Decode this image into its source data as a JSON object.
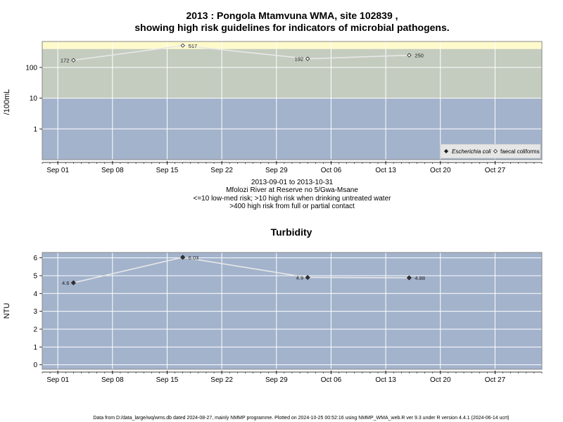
{
  "footer": "Data from D:/data_large/wq/wms.db dated 2024-08-27, mainly NMMP programme. Plotted on 2024-10-25 00:52:16 using NMMP_WMA_web.R ver 9.3 under R version 4.4.1 (2024-06-14 ucrt)",
  "x_ticks": [
    "Sep 01",
    "Sep 08",
    "Sep 15",
    "Sep 22",
    "Sep 29",
    "Oct 06",
    "Oct 13",
    "Oct 20",
    "Oct 27"
  ],
  "x_tick_dates": [
    "2013-09-01",
    "2013-09-08",
    "2013-09-15",
    "2013-09-22",
    "2013-09-29",
    "2013-10-06",
    "2013-10-13",
    "2013-10-20",
    "2013-10-27"
  ],
  "chart_data": [
    {
      "type": "line",
      "title": "2013 : Pongola Mtamvuna WMA, site 102839 ,",
      "subtitle": "showing high risk guidelines for indicators of microbial pathogens.",
      "notes": [
        "2013-09-01 to 2013-10-31",
        "Mfolozi River at Reserve no 5/Gwa-Msane",
        "<=10 low-med risk; >10 high risk when drinking untreated water",
        ">400 high risk from full or partial contact"
      ],
      "xlabel": "",
      "ylabel": "/100mL",
      "y_scale": "log",
      "ylim": [
        0.1,
        700
      ],
      "y_ticks": [
        "1",
        "10",
        "100"
      ],
      "xlim": [
        "2013-08-30",
        "2013-11-02"
      ],
      "grid": true,
      "legend_position": "bottom-right",
      "legend": [
        {
          "label": "Escherichia coli",
          "marker": "filled-diamond"
        },
        {
          "label": "faecal coliforms",
          "marker": "open-diamond"
        }
      ],
      "risk_bands": [
        {
          "from": 0.1,
          "to": 10,
          "color": "#a3b3cc"
        },
        {
          "from": 10,
          "to": 400,
          "color": "#c4ccbf"
        },
        {
          "from": 400,
          "to": 700,
          "color": "#fffacb"
        }
      ],
      "series": [
        {
          "name": "faecal coliforms",
          "marker": "open-diamond",
          "x": [
            "2013-09-03",
            "2013-09-17",
            "2013-10-03",
            "2013-10-16"
          ],
          "y": [
            172,
            517,
            192,
            250
          ],
          "labels": [
            "172",
            "517",
            "192",
            "250"
          ],
          "label_side": [
            "left",
            "right",
            "left",
            "right"
          ]
        }
      ]
    },
    {
      "type": "line",
      "title": "Turbidity",
      "xlabel": "",
      "ylabel": "NTU",
      "ylim": [
        -0.25,
        6.3
      ],
      "y_ticks": [
        "0",
        "1",
        "2",
        "3",
        "4",
        "5",
        "6"
      ],
      "xlim": [
        "2013-08-30",
        "2013-11-02"
      ],
      "grid": true,
      "background": "#a3b3cc",
      "series": [
        {
          "marker": "filled-diamond",
          "x": [
            "2013-09-03",
            "2013-09-17",
            "2013-10-03",
            "2013-10-16"
          ],
          "y": [
            4.6,
            6.03,
            4.9,
            4.88
          ],
          "labels": [
            "4.6",
            "6.03",
            "4.9",
            "4.88"
          ],
          "label_side": [
            "left",
            "right",
            "left",
            "right"
          ]
        }
      ]
    }
  ]
}
